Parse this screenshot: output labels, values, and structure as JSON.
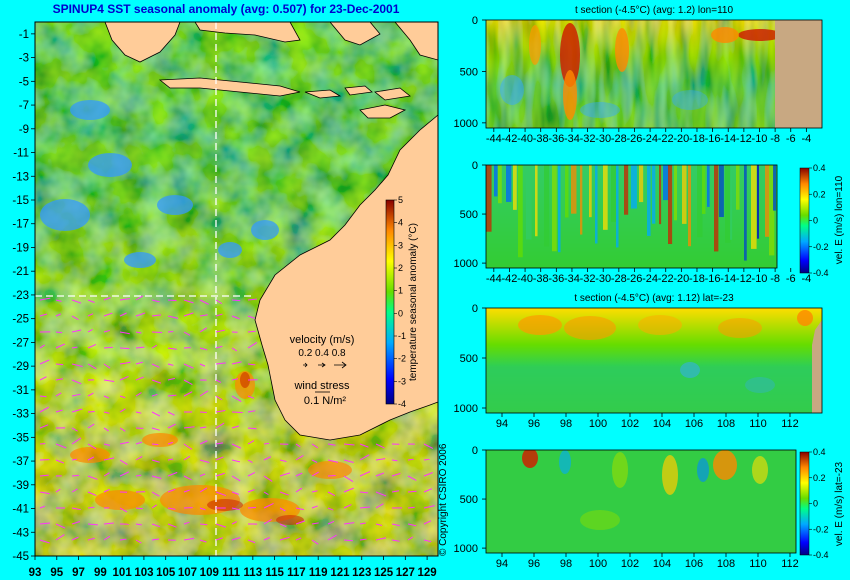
{
  "title": "SPINUP4 SST seasonal anomaly  (avg: 0.507)  for 23-Dec-2001",
  "copyright": "© Copyright CSIRO 2006",
  "colors": {
    "background": "#00ffff",
    "land": "#ffcc99",
    "land_section": "#c8a882",
    "title": "#0000cc",
    "vector": "#ff33ff"
  },
  "chart_data": [
    {
      "id": "map",
      "type": "heatmap",
      "title": "SPINUP4 SST seasonal anomaly  (avg: 0.507)  for 23-Dec-2001",
      "x_ticks": [
        "93",
        "95",
        "97",
        "99",
        "101",
        "103",
        "105",
        "107",
        "109",
        "111",
        "113",
        "115",
        "117",
        "119",
        "121",
        "123",
        "125",
        "127",
        "129"
      ],
      "y_ticks": [
        "-1",
        "-3",
        "-5",
        "-7",
        "-9",
        "-11",
        "-13",
        "-15",
        "-17",
        "-19",
        "-21",
        "-23",
        "-25",
        "-27",
        "-29",
        "-31",
        "-33",
        "-35",
        "-37",
        "-39",
        "-41",
        "-43",
        "-45"
      ],
      "xlim": [
        93,
        130
      ],
      "ylim": [
        -45,
        0
      ],
      "section_lines": {
        "lon": 110,
        "lat": -23
      },
      "colorbar": {
        "label": "temperature seasonal anomaly (°C)",
        "range": [
          -4,
          5
        ],
        "ticks": [
          "5",
          "4",
          "3",
          "2",
          "1",
          "0",
          "-1",
          "-2",
          "-3",
          "-4"
        ]
      },
      "legend": {
        "velocity_label": "velocity (m/s)",
        "velocity_values": "0.2 0.4 0.8",
        "wind_label": "wind stress",
        "wind_value": "0.1 N/m²"
      }
    },
    {
      "id": "section-t-lon",
      "type": "heatmap",
      "title": "t section (-4.5°C) (avg: 1.2) lon=110",
      "x_ticks": [
        "-44",
        "-42",
        "-40",
        "-38",
        "-36",
        "-34",
        "-32",
        "-30",
        "-28",
        "-26",
        "-24",
        "-22",
        "-20",
        "-18",
        "-16",
        "-14",
        "-12",
        "-10",
        "-8",
        "-6",
        "-4"
      ],
      "y_ticks": [
        "0",
        "500",
        "1000"
      ],
      "xlim": [
        -45,
        -2
      ],
      "ylim": [
        1050,
        0
      ]
    },
    {
      "id": "section-v-lon",
      "type": "heatmap",
      "title": "",
      "x_ticks": [
        "-44",
        "-42",
        "-40",
        "-38",
        "-36",
        "-34",
        "-32",
        "-30",
        "-28",
        "-26",
        "-24",
        "-22",
        "-20",
        "-18",
        "-16",
        "-14",
        "-12",
        "-10",
        "-8",
        "-6",
        "-4"
      ],
      "y_ticks": [
        "0",
        "500",
        "1000"
      ],
      "xlim": [
        -45,
        -2
      ],
      "ylim": [
        1050,
        0
      ],
      "colorbar": {
        "label": "vel. E (m/s) lon=110",
        "range": [
          -0.4,
          0.4
        ],
        "ticks": [
          "0.4",
          "0.2",
          "0",
          "-0.2",
          "-0.4"
        ]
      }
    },
    {
      "id": "section-t-lat",
      "type": "heatmap",
      "title": "t section (-4.5°C) (avg: 1.12) lat=-23",
      "x_ticks": [
        "94",
        "96",
        "98",
        "100",
        "102",
        "104",
        "106",
        "108",
        "110",
        "112"
      ],
      "y_ticks": [
        "0",
        "500",
        "1000"
      ],
      "xlim": [
        93,
        114
      ],
      "ylim": [
        1050,
        0
      ]
    },
    {
      "id": "section-v-lat",
      "type": "heatmap",
      "title": "",
      "x_ticks": [
        "94",
        "96",
        "98",
        "100",
        "102",
        "104",
        "106",
        "108",
        "110",
        "112"
      ],
      "y_ticks": [
        "0",
        "500",
        "1000"
      ],
      "xlim": [
        93,
        114
      ],
      "ylim": [
        1050,
        0
      ],
      "colorbar": {
        "label": "vel. E (m/s) lat=-23",
        "range": [
          -0.4,
          0.4
        ],
        "ticks": [
          "0.4",
          "0.2",
          "0",
          "-0.2",
          "-0.4"
        ]
      }
    }
  ]
}
